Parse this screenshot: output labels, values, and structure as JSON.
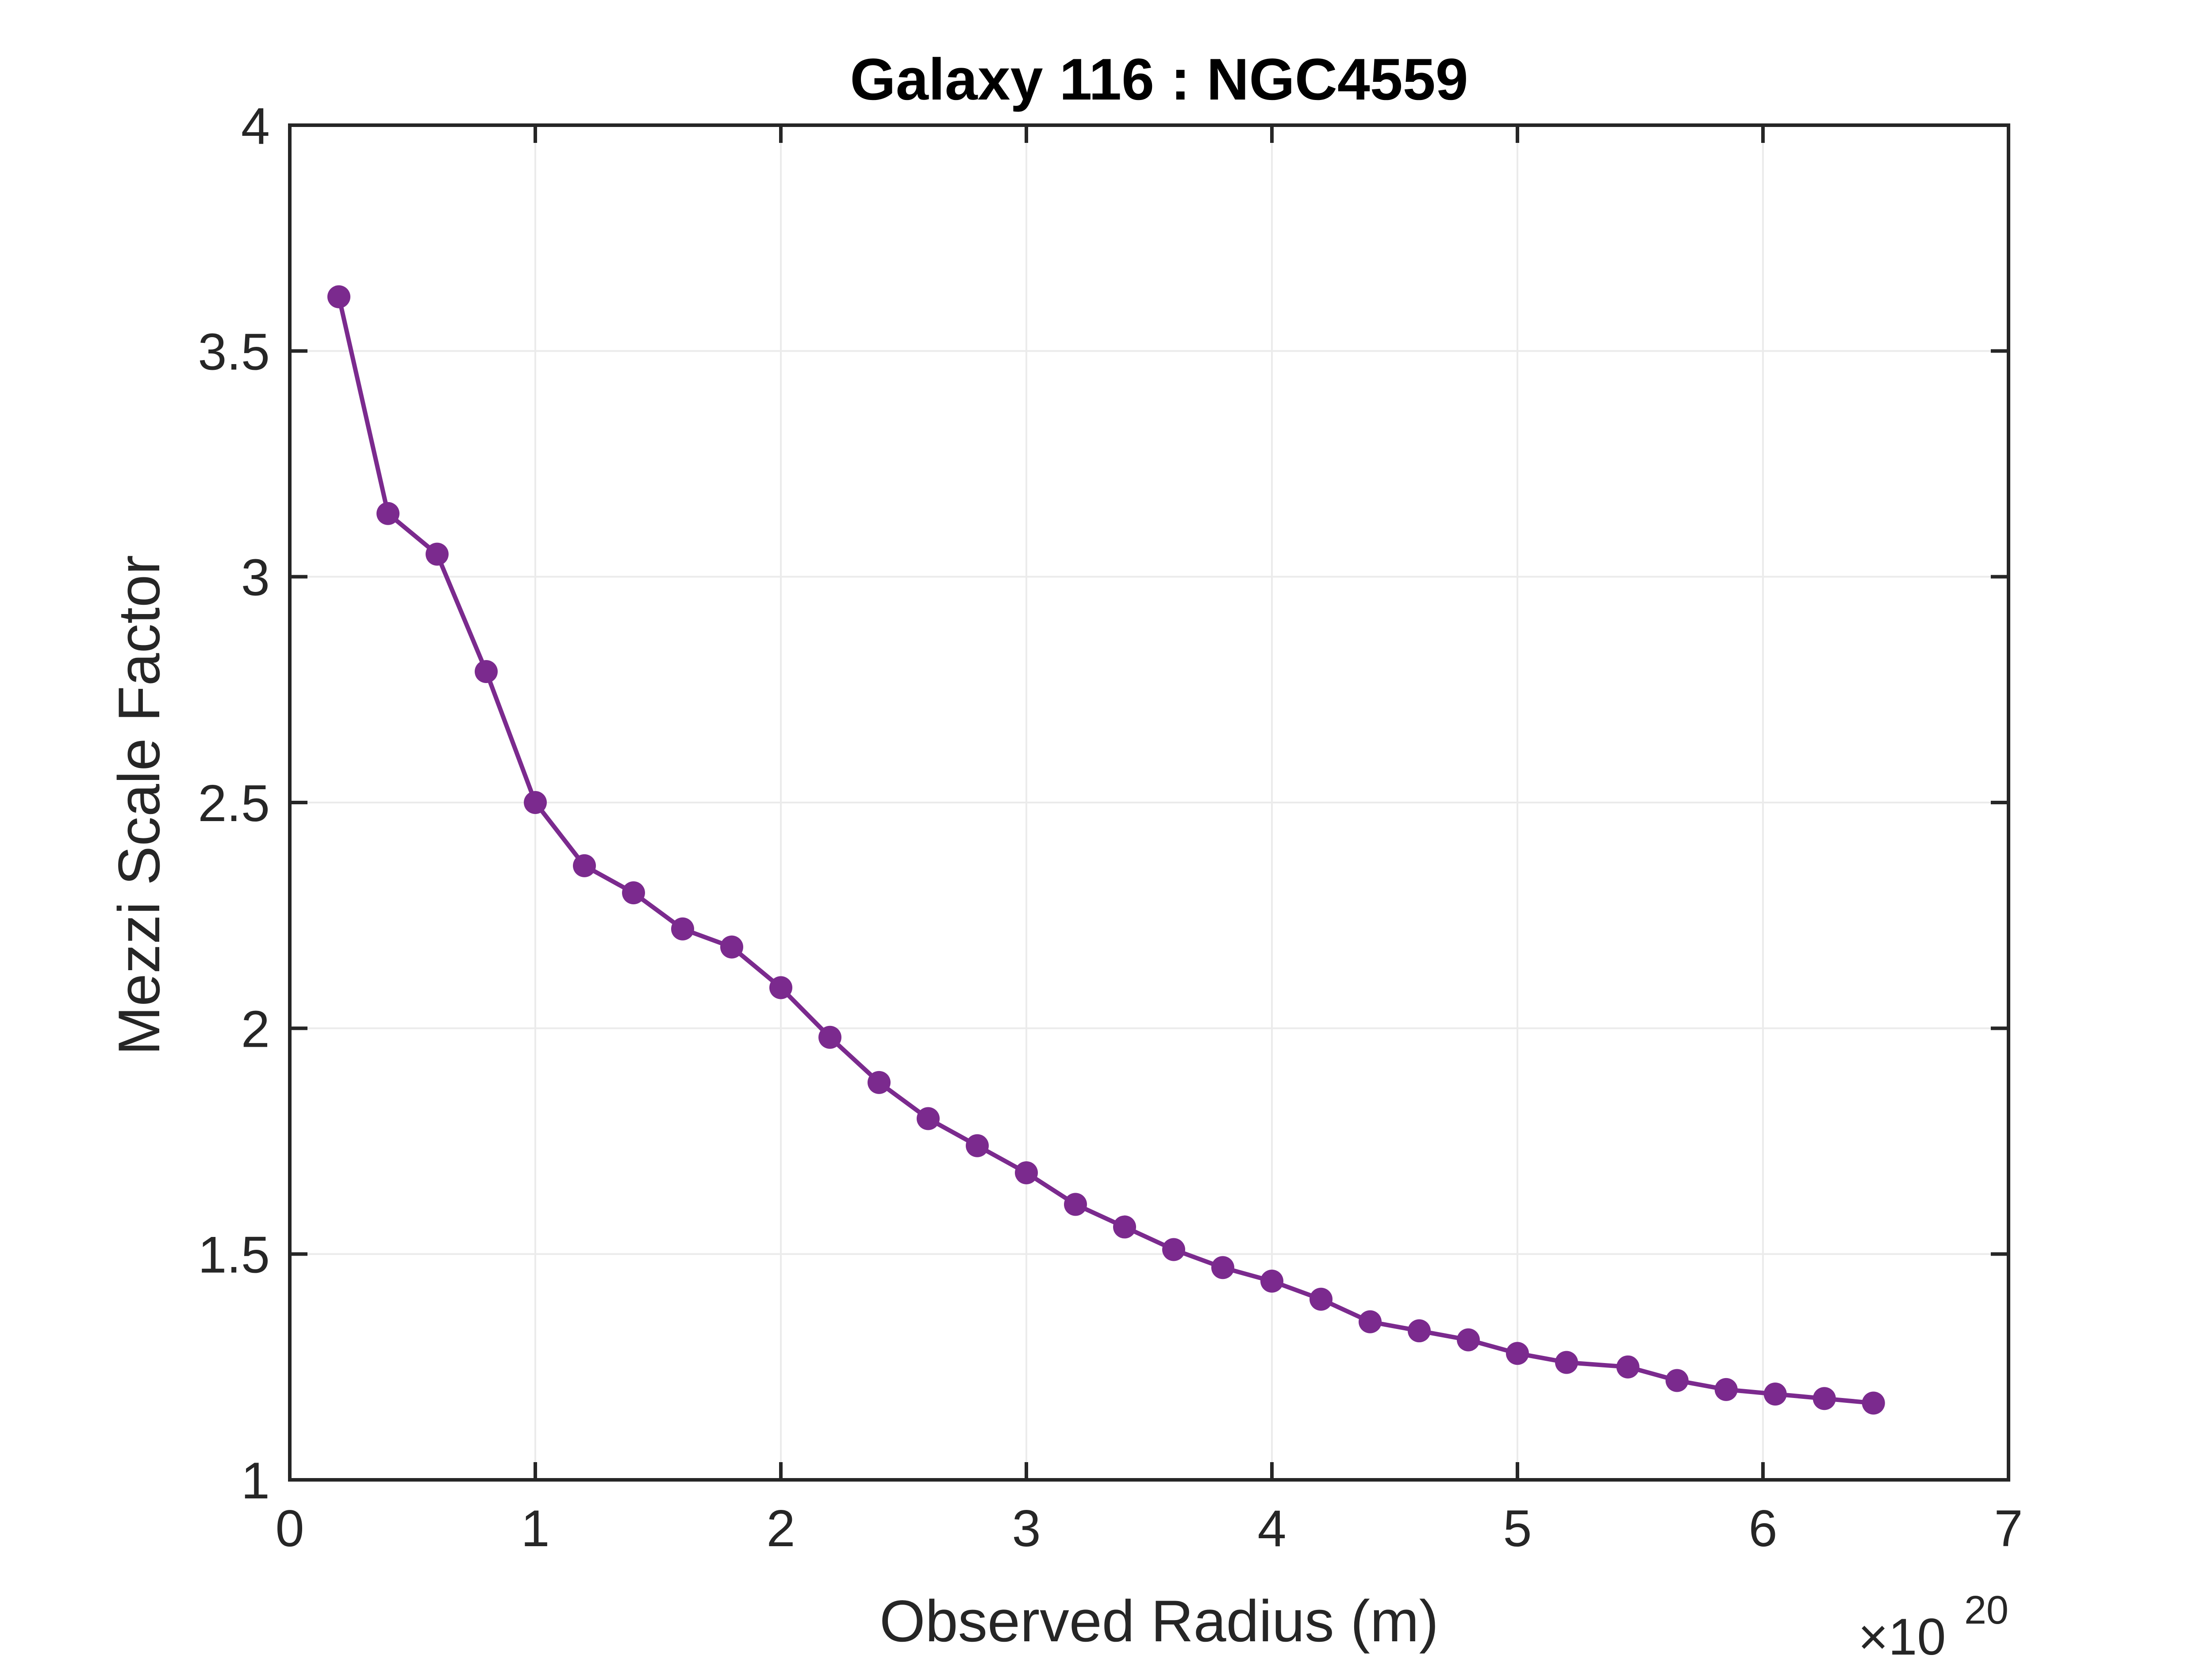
{
  "chart_data": {
    "type": "line",
    "title": "Galaxy 116 : NGC4559",
    "xlabel": "Observed Radius (m)",
    "ylabel": "Mezzi Scale Factor",
    "x_multiplier": {
      "base": "×10",
      "exponent": "20"
    },
    "xlim": [
      0,
      7
    ],
    "ylim": [
      1,
      4
    ],
    "xticks": [
      0,
      1,
      2,
      3,
      4,
      5,
      6,
      7
    ],
    "yticks": [
      1,
      1.5,
      2,
      2.5,
      3,
      3.5,
      4
    ],
    "xtick_labels": [
      "0",
      "1",
      "2",
      "3",
      "4",
      "5",
      "6",
      "7"
    ],
    "ytick_labels": [
      "1",
      "1.5",
      "2",
      "2.5",
      "3",
      "3.5",
      "4"
    ],
    "grid": true,
    "series": [
      {
        "color": "#7b2a8e",
        "marker": "circle",
        "x": [
          0.2,
          0.4,
          0.6,
          0.8,
          1.0,
          1.2,
          1.4,
          1.6,
          1.8,
          2.0,
          2.2,
          2.4,
          2.6,
          2.8,
          3.0,
          3.2,
          3.4,
          3.6,
          3.8,
          4.0,
          4.2,
          4.4,
          4.6,
          4.8,
          5.0,
          5.2,
          5.45,
          5.65,
          5.85,
          6.05,
          6.25,
          6.45
        ],
        "y": [
          3.62,
          3.14,
          3.05,
          2.79,
          2.5,
          2.36,
          2.3,
          2.22,
          2.18,
          2.09,
          1.98,
          1.88,
          1.8,
          1.74,
          1.68,
          1.61,
          1.56,
          1.51,
          1.47,
          1.44,
          1.4,
          1.35,
          1.33,
          1.31,
          1.28,
          1.26,
          1.25,
          1.22,
          1.2,
          1.19,
          1.18,
          1.17
        ]
      }
    ]
  }
}
